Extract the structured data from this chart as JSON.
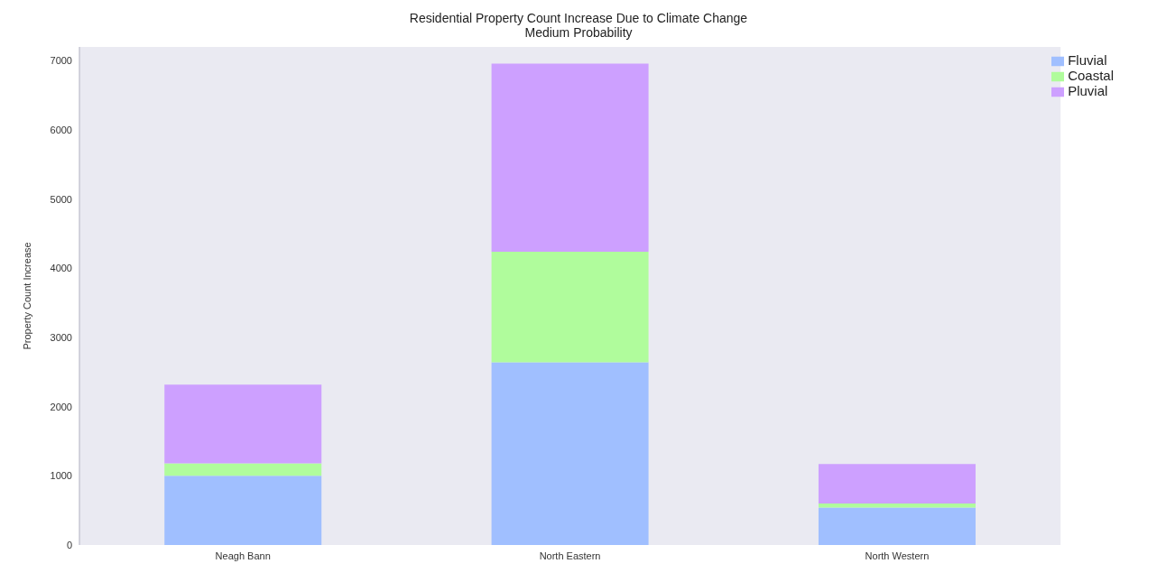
{
  "chart_data": {
    "type": "bar",
    "title": "Residential Property Count Increase Due to Climate Change",
    "subtitle": "Medium Probability",
    "ylabel": "Property Count Increase",
    "categories": [
      "Neagh Bann",
      "North Eastern",
      "North Western"
    ],
    "stacked": true,
    "legend": "top right",
    "ylim": [
      0,
      7200
    ],
    "yticks": [
      0,
      1000,
      2000,
      3000,
      4000,
      5000,
      6000,
      7000
    ],
    "series": [
      {
        "name": "Fluvial",
        "color": "#a0bfff",
        "values": [
          1000,
          2640,
          540
        ]
      },
      {
        "name": "Coastal",
        "color": "#b0fc9c",
        "values": [
          180,
          1600,
          60
        ]
      },
      {
        "name": "Pluvial",
        "color": "#cda0ff",
        "values": [
          1140,
          2720,
          570
        ]
      }
    ]
  }
}
